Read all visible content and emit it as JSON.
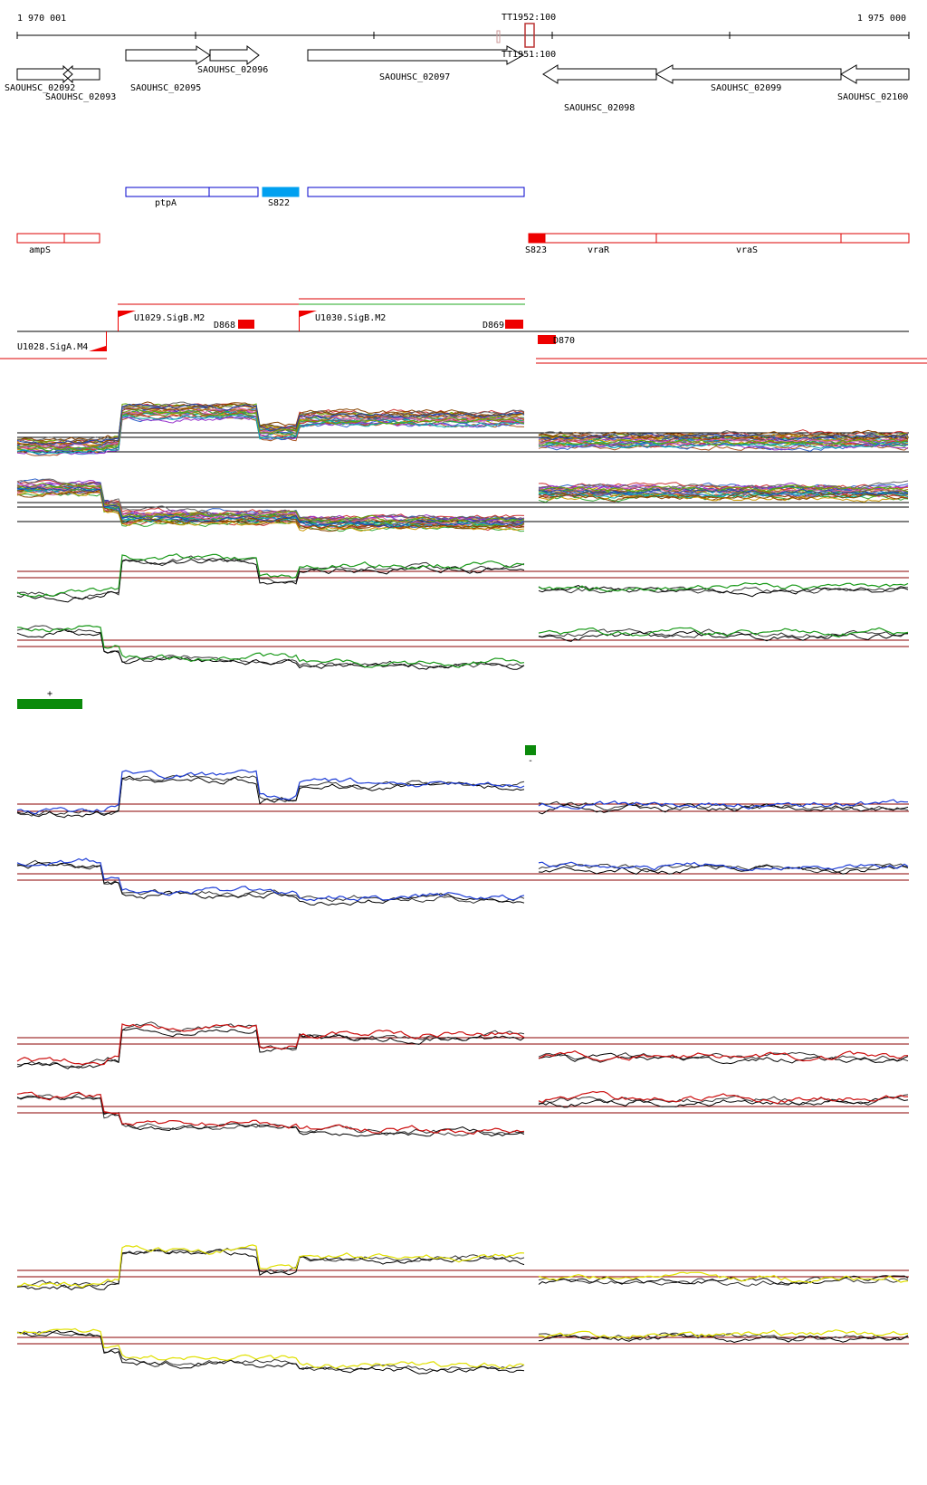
{
  "ruler": {
    "start_label": "1 970 001",
    "end_label": "1 975 000",
    "terminators": [
      {
        "name": "TT1952:100",
        "strand": "+"
      },
      {
        "name": "TT1951:100",
        "strand": "-"
      }
    ]
  },
  "genes": [
    {
      "name": "SAOUHSC_02092",
      "strand": "+"
    },
    {
      "name": "SAOUHSC_02093",
      "strand": "-"
    },
    {
      "name": "SAOUHSC_02095",
      "strand": "+"
    },
    {
      "name": "SAOUHSC_02096",
      "strand": "+"
    },
    {
      "name": "SAOUHSC_02097",
      "strand": "+"
    },
    {
      "name": "SAOUHSC_02098",
      "strand": "-"
    },
    {
      "name": "SAOUHSC_02099",
      "strand": "-"
    },
    {
      "name": "SAOUHSC_02100",
      "strand": "-"
    }
  ],
  "features_plus": [
    {
      "name": "ptpA",
      "color": "#0000cc"
    },
    {
      "name": "S822",
      "color": "#00a0f0"
    }
  ],
  "features_minus": [
    {
      "name": "ampS",
      "color": "#dd0000"
    },
    {
      "name": "S823",
      "color": "#ee0000"
    },
    {
      "name": "vraR",
      "color": "#dd0000"
    },
    {
      "name": "vraS",
      "color": "#dd0000"
    }
  ],
  "promoters": [
    {
      "name": "U1029.SigB.M2",
      "strand": "+"
    },
    {
      "name": "U1030.SigB.M2",
      "strand": "+"
    },
    {
      "name": "U1028.SigA.M4",
      "strand": "-"
    }
  ],
  "downshifts": [
    {
      "name": "D868"
    },
    {
      "name": "D869"
    },
    {
      "name": "D870"
    }
  ],
  "strand_markers": {
    "plus": "+",
    "minus": "-"
  },
  "colors": {
    "ruler": "#000000",
    "threshold": "#8b0000",
    "green_series": "#1a9a1a",
    "blue_series": "#1e3dd6",
    "red_series": "#cc1010",
    "yellow_series": "#e0e000",
    "marker_green": "#0b8a0b"
  }
}
